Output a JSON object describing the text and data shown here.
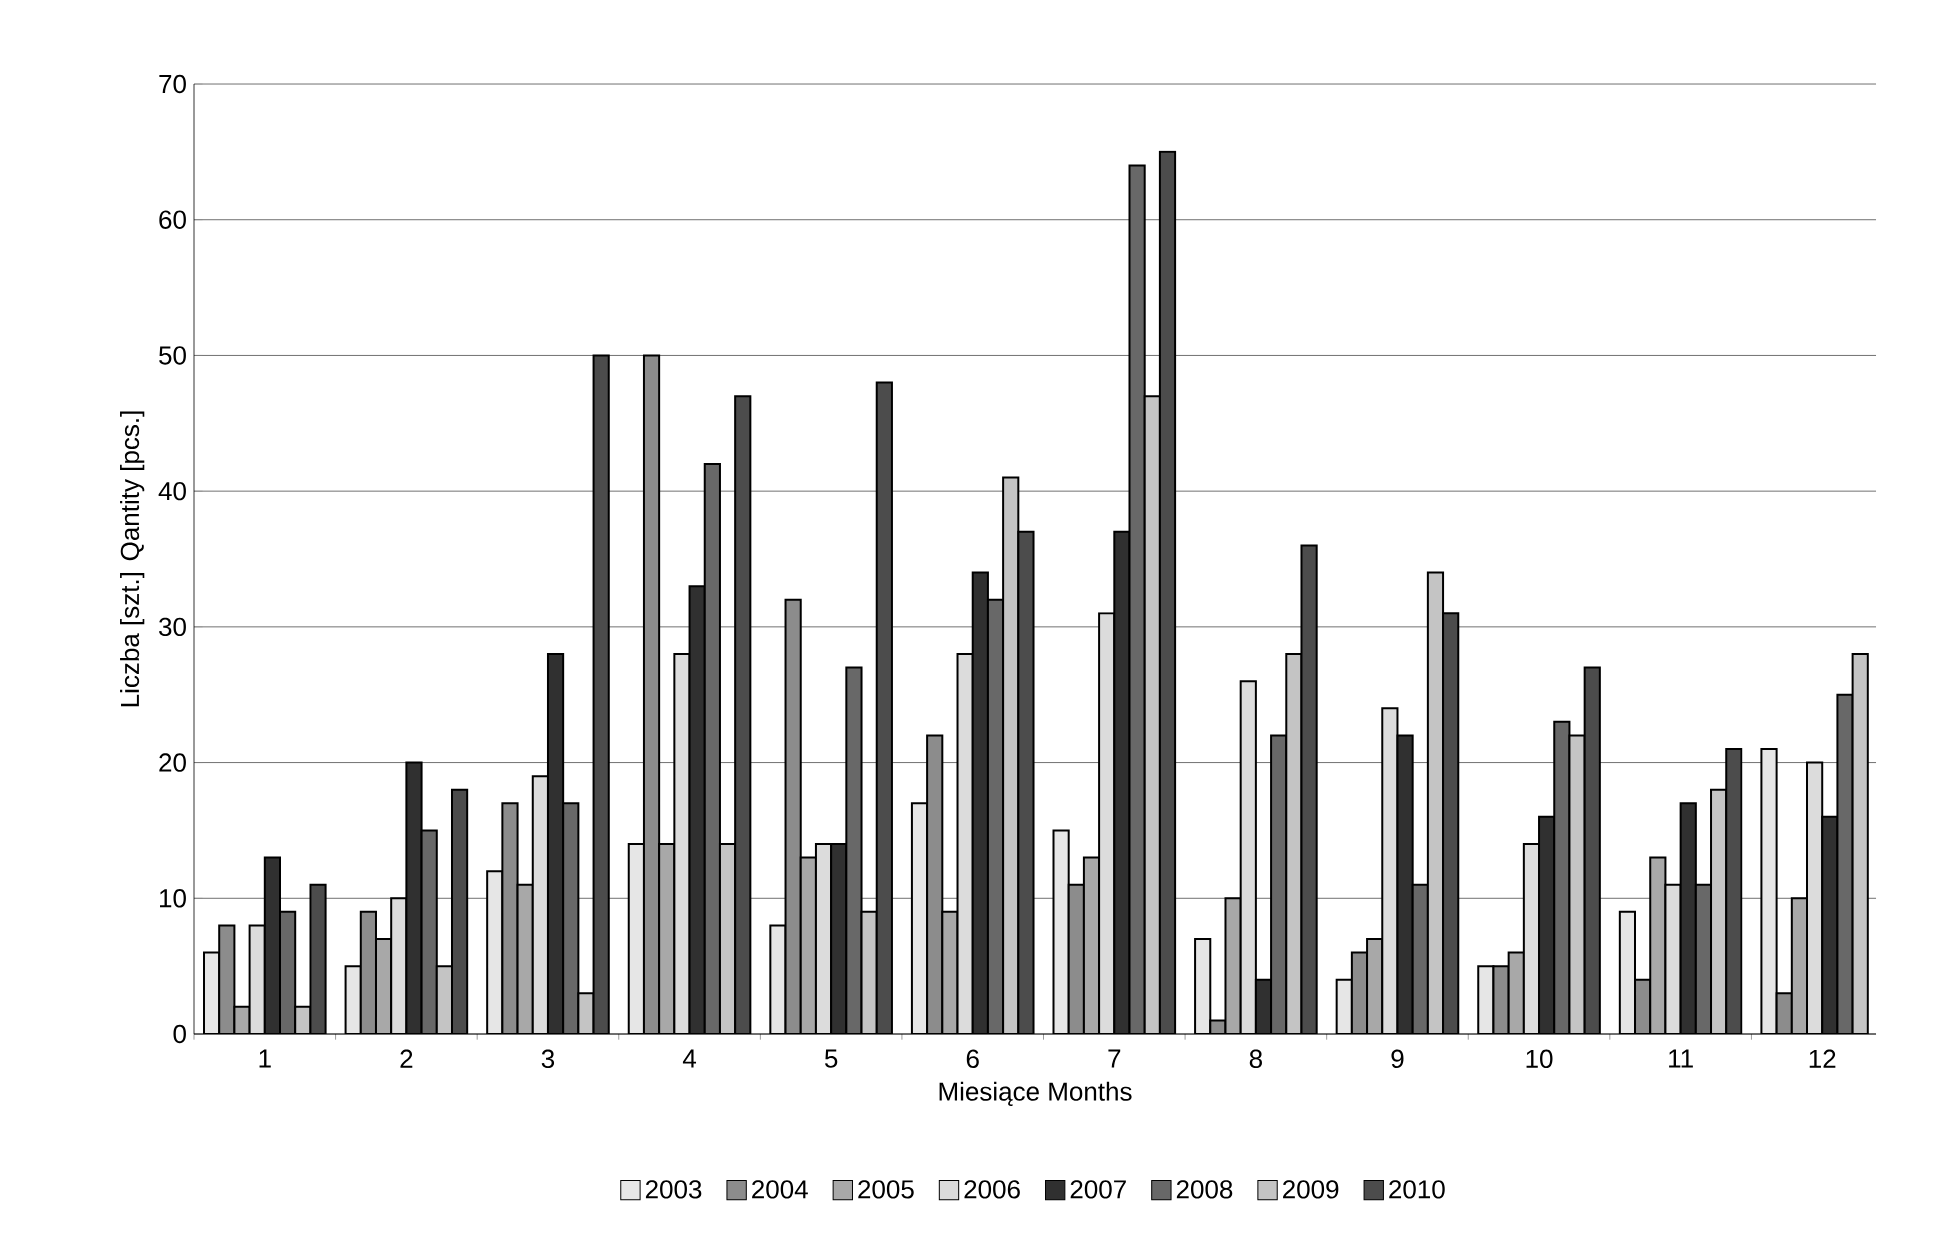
{
  "chart_data": {
    "type": "bar",
    "categories": [
      "1",
      "2",
      "3",
      "4",
      "5",
      "6",
      "7",
      "8",
      "9",
      "10",
      "11",
      "12"
    ],
    "xlabel": "Miesiące  Months",
    "ylabel": "Liczba [szt.] Qantity [pcs.]",
    "ylim": [
      0,
      70
    ],
    "yticks": [
      0,
      10,
      20,
      30,
      40,
      50,
      60,
      70
    ],
    "grid": "y",
    "legend": "bottom",
    "series": [
      {
        "name": "2003",
        "color": "#e6e6e6",
        "values": [
          6,
          5,
          12,
          14,
          8,
          17,
          15,
          7,
          4,
          5,
          9,
          21
        ]
      },
      {
        "name": "2004",
        "color": "#8c8c8c",
        "values": [
          8,
          9,
          17,
          50,
          32,
          22,
          11,
          1,
          6,
          5,
          4,
          3
        ]
      },
      {
        "name": "2005",
        "color": "#a8a8a8",
        "values": [
          2,
          7,
          11,
          14,
          13,
          9,
          13,
          10,
          7,
          6,
          13,
          10
        ]
      },
      {
        "name": "2006",
        "color": "#dcdcdc",
        "values": [
          8,
          10,
          19,
          28,
          14,
          28,
          31,
          26,
          24,
          14,
          11,
          20
        ]
      },
      {
        "name": "2007",
        "color": "#303030",
        "values": [
          13,
          20,
          28,
          33,
          14,
          34,
          37,
          4,
          22,
          16,
          17,
          16
        ]
      },
      {
        "name": "2008",
        "color": "#686868",
        "values": [
          9,
          15,
          17,
          42,
          27,
          32,
          64,
          22,
          11,
          23,
          11,
          25
        ]
      },
      {
        "name": "2009",
        "color": "#c4c4c4",
        "values": [
          2,
          5,
          3,
          14,
          9,
          41,
          47,
          28,
          34,
          22,
          18,
          28
        ]
      },
      {
        "name": "2010",
        "color": "#4c4c4c",
        "values": [
          11,
          18,
          50,
          47,
          48,
          37,
          65,
          36,
          31,
          27,
          21,
          null
        ]
      }
    ]
  }
}
